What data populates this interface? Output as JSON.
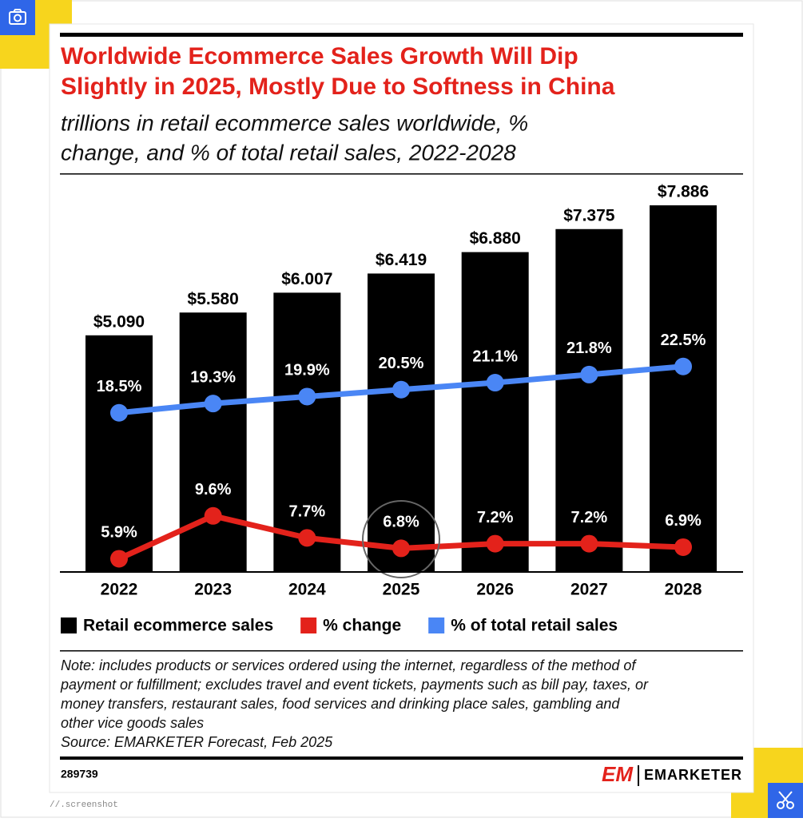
{
  "chart_data": {
    "type": "bar",
    "title": [
      "Worldwide Ecommerce Sales Growth Will Dip",
      "Slightly in 2025, Mostly Due to Softness in China"
    ],
    "subtitle": [
      "trillions in retail ecommerce sales worldwide, %",
      "change, and % of total retail sales, 2022-2028"
    ],
    "categories": [
      "2022",
      "2023",
      "2024",
      "2025",
      "2026",
      "2027",
      "2028"
    ],
    "series": [
      {
        "name": "Retail ecommerce sales",
        "type": "bar",
        "color": "#000000",
        "values": [
          5.09,
          5.58,
          6.007,
          6.419,
          6.88,
          7.375,
          7.886
        ],
        "value_labels": [
          "$5.090",
          "$5.580",
          "$6.007",
          "$6.419",
          "$6.880",
          "$7.375",
          "$7.886"
        ]
      },
      {
        "name": "% change",
        "type": "line",
        "color": "#e3221b",
        "values": [
          5.9,
          9.6,
          7.7,
          6.8,
          7.2,
          7.2,
          6.9
        ],
        "value_labels": [
          "5.9%",
          "9.6%",
          "7.7%",
          "6.8%",
          "7.2%",
          "7.2%",
          "6.9%"
        ]
      },
      {
        "name": "% of total retail sales",
        "type": "line",
        "color": "#4a86f5",
        "values": [
          18.5,
          19.3,
          19.9,
          20.5,
          21.1,
          21.8,
          22.5
        ],
        "value_labels": [
          "18.5%",
          "19.3%",
          "19.9%",
          "20.5%",
          "21.1%",
          "21.8%",
          "22.5%"
        ]
      }
    ],
    "legend": "bottom",
    "note": [
      "Note: includes products or services ordered using the internet, regardless of the method of",
      "payment or fulfillment; excludes travel and event tickets, payments such as bill pay, taxes, or",
      "money transfers, restaurant sales, food services and drinking place sales, gambling and",
      "other vice goods sales"
    ],
    "source": "Source: EMARKETER Forecast, Feb 2025",
    "chart_id": "289739",
    "brand": "EMARKETER",
    "watermark": "//.screenshot"
  }
}
